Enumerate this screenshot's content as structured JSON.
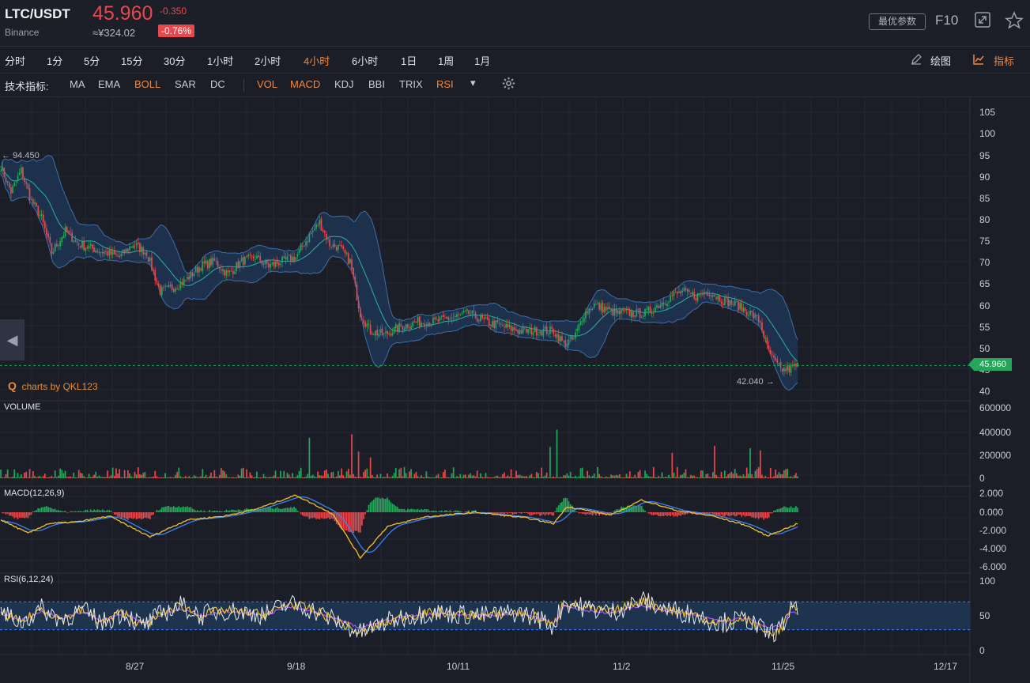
{
  "header": {
    "pair": "LTC/USDT",
    "exchange": "Binance",
    "price": "45.960",
    "change": "-0.350",
    "cny": "≈¥324.02",
    "change_pct": "-0.76%",
    "params_btn": "最优参数",
    "f10": "F10"
  },
  "timeframes": [
    "分时",
    "1分",
    "5分",
    "15分",
    "30分",
    "1小时",
    "2小时",
    "4小时",
    "6小时",
    "1日",
    "1周",
    "1月"
  ],
  "active_timeframe": "4小时",
  "tools": {
    "draw": "绘图",
    "indicators": "指标"
  },
  "indicator_bar": {
    "label": "技术指标:",
    "main": [
      "MA",
      "EMA",
      "BOLL",
      "SAR",
      "DC"
    ],
    "sub": [
      "VOL",
      "MACD",
      "KDJ",
      "BBI",
      "TRIX",
      "RSI"
    ],
    "active": [
      "BOLL",
      "VOL",
      "MACD",
      "RSI"
    ]
  },
  "colors": {
    "up": "#26a65b",
    "down": "#e8484c",
    "accent": "#f0883e",
    "boll_fill": "#1f3553",
    "boll_line": "#3d6ea8",
    "mid": "#27b3a0"
  },
  "price_axis": [
    "105",
    "100",
    "95",
    "90",
    "85",
    "80",
    "75",
    "70",
    "65",
    "60",
    "55",
    "50",
    "45",
    "40"
  ],
  "last_price_tag": "45.960",
  "annotations": {
    "high": "94.450",
    "low": "42.040"
  },
  "watermark": "charts by QKL123",
  "volume": {
    "title": "VOLUME",
    "axis": [
      "600000",
      "400000",
      "200000",
      "0"
    ]
  },
  "macd": {
    "title": "MACD(12,26,9)",
    "axis": [
      "2.000",
      "0.000",
      "-2.000",
      "-4.000",
      "-6.000"
    ]
  },
  "rsi": {
    "title": "RSI(6,12,24)",
    "axis": [
      "100",
      "50",
      "0"
    ]
  },
  "x_axis": [
    "8/27",
    "9/18",
    "10/11",
    "11/2",
    "11/25",
    "12/17"
  ],
  "chart_data": {
    "type": "candlestick",
    "title": "LTC/USDT",
    "price_key": [
      [
        0,
        92
      ],
      [
        6,
        86
      ],
      [
        12,
        91
      ],
      [
        18,
        84
      ],
      [
        24,
        80
      ],
      [
        30,
        72
      ],
      [
        38,
        77
      ],
      [
        46,
        74
      ],
      [
        54,
        73
      ],
      [
        62,
        72
      ],
      [
        70,
        71
      ],
      [
        78,
        74
      ],
      [
        86,
        72
      ],
      [
        94,
        63
      ],
      [
        102,
        64
      ],
      [
        110,
        66
      ],
      [
        118,
        69
      ],
      [
        126,
        70
      ],
      [
        134,
        67
      ],
      [
        142,
        70
      ],
      [
        150,
        71
      ],
      [
        158,
        69
      ],
      [
        166,
        70
      ],
      [
        174,
        71
      ],
      [
        182,
        76
      ],
      [
        188,
        79
      ],
      [
        194,
        74
      ],
      [
        200,
        73
      ],
      [
        206,
        70
      ],
      [
        212,
        58
      ],
      [
        218,
        54
      ],
      [
        226,
        53
      ],
      [
        236,
        55
      ],
      [
        246,
        56
      ],
      [
        256,
        56
      ],
      [
        266,
        57
      ],
      [
        276,
        58
      ],
      [
        286,
        56
      ],
      [
        296,
        55
      ],
      [
        306,
        54
      ],
      [
        316,
        54
      ],
      [
        326,
        54
      ],
      [
        332,
        51
      ],
      [
        338,
        52
      ],
      [
        344,
        58
      ],
      [
        350,
        60
      ],
      [
        356,
        59
      ],
      [
        364,
        58
      ],
      [
        372,
        58
      ],
      [
        380,
        58
      ],
      [
        388,
        60
      ],
      [
        396,
        62
      ],
      [
        402,
        63
      ],
      [
        410,
        62
      ],
      [
        418,
        63
      ],
      [
        426,
        61
      ],
      [
        434,
        60
      ],
      [
        442,
        58
      ],
      [
        448,
        56
      ],
      [
        452,
        50
      ],
      [
        456,
        47
      ],
      [
        460,
        45
      ],
      [
        464,
        45
      ],
      [
        470,
        46
      ]
    ],
    "volume_spikes": [
      [
        182,
        350000
      ],
      [
        207,
        380000
      ],
      [
        211,
        230000
      ],
      [
        218,
        180000
      ],
      [
        324,
        270000
      ],
      [
        328,
        420000
      ],
      [
        396,
        220000
      ],
      [
        421,
        280000
      ],
      [
        442,
        260000
      ],
      [
        448,
        240000
      ]
    ],
    "macd_key": [
      [
        0,
        -0.8
      ],
      [
        16,
        -2.2
      ],
      [
        28,
        -1.2
      ],
      [
        46,
        -1.0
      ],
      [
        64,
        -0.4
      ],
      [
        88,
        -2.6
      ],
      [
        110,
        -0.8
      ],
      [
        132,
        -0.4
      ],
      [
        150,
        0.3
      ],
      [
        174,
        1.8
      ],
      [
        196,
        -0.2
      ],
      [
        212,
        -4.8
      ],
      [
        228,
        -1.5
      ],
      [
        250,
        -0.5
      ],
      [
        280,
        0.0
      ],
      [
        310,
        -0.6
      ],
      [
        326,
        -1.2
      ],
      [
        334,
        0.6
      ],
      [
        360,
        -0.3
      ],
      [
        378,
        1.3
      ],
      [
        398,
        0.2
      ],
      [
        420,
        -0.4
      ],
      [
        440,
        -1.4
      ],
      [
        452,
        -2.5
      ],
      [
        470,
        -1.2
      ]
    ],
    "rsi_key": [
      [
        0,
        55
      ],
      [
        12,
        40
      ],
      [
        24,
        60
      ],
      [
        36,
        45
      ],
      [
        48,
        58
      ],
      [
        60,
        40
      ],
      [
        72,
        55
      ],
      [
        84,
        35
      ],
      [
        96,
        55
      ],
      [
        106,
        65
      ],
      [
        118,
        50
      ],
      [
        130,
        58
      ],
      [
        142,
        55
      ],
      [
        156,
        52
      ],
      [
        170,
        68
      ],
      [
        182,
        60
      ],
      [
        196,
        45
      ],
      [
        212,
        25
      ],
      [
        226,
        40
      ],
      [
        240,
        50
      ],
      [
        256,
        55
      ],
      [
        272,
        52
      ],
      [
        288,
        50
      ],
      [
        304,
        55
      ],
      [
        316,
        48
      ],
      [
        326,
        35
      ],
      [
        332,
        70
      ],
      [
        344,
        62
      ],
      [
        360,
        55
      ],
      [
        378,
        72
      ],
      [
        392,
        60
      ],
      [
        408,
        52
      ],
      [
        424,
        40
      ],
      [
        440,
        45
      ],
      [
        452,
        25
      ],
      [
        460,
        30
      ],
      [
        466,
        60
      ],
      [
        470,
        55
      ]
    ]
  }
}
